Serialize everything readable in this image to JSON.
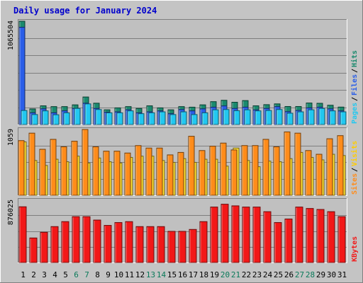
{
  "chart_data": {
    "type": "bar",
    "title": "Daily usage for January 2024",
    "categories": [
      "1",
      "2",
      "3",
      "4",
      "5",
      "6",
      "7",
      "8",
      "9",
      "10",
      "11",
      "12",
      "13",
      "14",
      "15",
      "16",
      "17",
      "18",
      "19",
      "20",
      "21",
      "22",
      "23",
      "24",
      "25",
      "26",
      "27",
      "28",
      "29",
      "30",
      "31"
    ],
    "weekend_days": [
      "6",
      "7",
      "13",
      "14",
      "20",
      "21",
      "27",
      "28"
    ],
    "panels": [
      {
        "id": "top",
        "ymax_label": "1065504",
        "ymax": 1065504,
        "legend": [
          "Pages",
          "Files",
          "Hits"
        ],
        "series": [
          {
            "name": "Hits",
            "color": "#1a8a6e",
            "values": [
              1065504,
              161000,
              193000,
              185000,
              185000,
              203000,
              284000,
              220000,
              152000,
              172000,
              185000,
              166000,
              193000,
              172000,
              152000,
              185000,
              179000,
              203000,
              236000,
              250000,
              230000,
              247000,
              193000,
              205000,
              213000,
              186000,
              186000,
              222000,
              219000,
              199000,
              180000
            ]
          },
          {
            "name": "Files",
            "color": "#2a5ee8",
            "values": [
              1003000,
              121000,
              162000,
              121000,
              141000,
              166000,
              220000,
              166000,
              127000,
              131000,
              152000,
              121000,
              131000,
              141000,
              112000,
              155000,
              141000,
              162000,
              179000,
              192000,
              166000,
              179000,
              151000,
              166000,
              185000,
              133000,
              145000,
              172000,
              179000,
              162000,
              141000
            ]
          },
          {
            "name": "Pages",
            "color": "#22c8f0",
            "values": [
              145000,
              103000,
              141000,
              101000,
              121000,
              166000,
              213000,
              155000,
              121000,
              121000,
              141000,
              112000,
              121000,
              131000,
              103000,
              131000,
              103000,
              121000,
              152000,
              155000,
              143000,
              152000,
              141000,
              145000,
              155000,
              117000,
              131000,
              152000,
              166000,
              141000,
              131000
            ]
          }
        ]
      },
      {
        "id": "middle",
        "ymax_label": "1059",
        "ymax": 1059,
        "legend": [
          "Sites",
          "Visits"
        ],
        "series": [
          {
            "name": "Visits",
            "color": "#ffe030",
            "values": [
              860,
              560,
              480,
              580,
              540,
              630,
              520,
              600,
              540,
              520,
              610,
              630,
              630,
              560,
              530,
              590,
              530,
              580,
              580,
              470,
              760,
              560,
              460,
              550,
              540,
              590,
              690,
              610,
              570,
              660,
              640
            ]
          },
          {
            "name": "Sites",
            "color": "#ff8c1a",
            "values": [
              880,
              1000,
              740,
              900,
              780,
              870,
              1059,
              780,
              710,
              710,
              680,
              800,
              760,
              760,
              650,
              690,
              950,
              720,
              790,
              840,
              730,
              800,
              800,
              900,
              780,
              1020,
              1000,
              720,
              660,
              910,
              960
            ]
          }
        ]
      },
      {
        "id": "bottom",
        "ymax_label": "876025",
        "ymax": 876025,
        "legend": [
          "KBytes"
        ],
        "series": [
          {
            "name": "KBytes",
            "color": "#f21818",
            "values": [
              784000,
              345000,
              425000,
              505000,
              575000,
              645000,
              645000,
              597000,
              522000,
              562000,
              575000,
              505000,
              505000,
              505000,
              438000,
              438000,
              465000,
              575000,
              780000,
              820000,
              797000,
              780000,
              780000,
              715000,
              562000,
              612000,
              780000,
              760000,
              746000,
              715000,
              645000
            ]
          }
        ]
      }
    ],
    "colors": {
      "background": "#c4c4c4",
      "plot_background": "#c0c0c0",
      "title": "#0000cc",
      "grid": "#7e7e7e",
      "weekday_label": "#000000",
      "weekend_label": "#0a7a5a",
      "label_Hits": "#1a8a6e",
      "label_Files": "#2a5ee8",
      "label_Pages": "#22c8f0",
      "label_Sites": "#ff8c1a",
      "label_Visits": "#ffcc00",
      "label_KBytes": "#f21818",
      "separator": "#000000"
    }
  }
}
